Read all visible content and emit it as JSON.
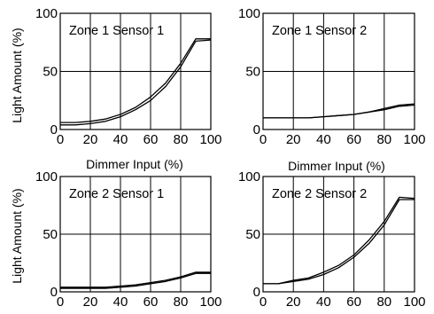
{
  "axis_titles": {
    "y_top": "Light Amount (%)",
    "y_bottom": "Light Amount (%)",
    "x_left": "Dimmer Input (%)",
    "x_right": "Dimmer Input (%)"
  },
  "chart_data": [
    {
      "type": "line",
      "title": "Zone 1 Sensor 1",
      "xlabel": "Dimmer Input (%)",
      "ylabel": "Light Amount (%)",
      "xlim": [
        0,
        100
      ],
      "ylim": [
        0,
        100
      ],
      "x_ticks": [
        "0",
        "20",
        "40",
        "60",
        "80",
        "100"
      ],
      "y_ticks": [
        "0",
        "50",
        "100"
      ],
      "grid": true,
      "x": [
        0,
        10,
        20,
        30,
        40,
        50,
        60,
        70,
        80,
        90,
        100
      ],
      "series": [
        {
          "values": [
            4,
            4,
            5,
            7,
            11,
            17,
            25,
            37,
            54,
            76,
            77
          ]
        },
        {
          "values": [
            6,
            6,
            7,
            9,
            13,
            19,
            28,
            40,
            57,
            78,
            78
          ]
        }
      ],
      "colors": [
        "#000000",
        "#000000"
      ]
    },
    {
      "type": "line",
      "title": "Zone 1 Sensor 2",
      "xlabel": "Dimmer Input (%)",
      "ylabel": "",
      "xlim": [
        0,
        100
      ],
      "ylim": [
        0,
        100
      ],
      "x_ticks": [
        "0",
        "20",
        "40",
        "60",
        "80",
        "100"
      ],
      "y_ticks": [
        "0",
        "50",
        "100"
      ],
      "grid": true,
      "x": [
        0,
        10,
        20,
        30,
        40,
        50,
        60,
        70,
        80,
        90,
        100
      ],
      "series": [
        {
          "values": [
            10,
            10,
            10,
            10,
            11,
            12,
            13,
            15,
            17,
            20,
            21
          ]
        },
        {
          "values": [
            10,
            10,
            10,
            10,
            11,
            12,
            13,
            15,
            18,
            21,
            22
          ]
        }
      ],
      "colors": [
        "#000000",
        "#000000"
      ]
    },
    {
      "type": "line",
      "title": "Zone 2 Sensor 1",
      "xlabel": "",
      "ylabel": "Light Amount (%)",
      "xlim": [
        0,
        100
      ],
      "ylim": [
        0,
        100
      ],
      "x_ticks": [
        "0",
        "20",
        "40",
        "60",
        "80",
        "100"
      ],
      "y_ticks": [
        "0",
        "50",
        "100"
      ],
      "grid": true,
      "x": [
        0,
        10,
        20,
        30,
        40,
        50,
        60,
        70,
        80,
        90,
        100
      ],
      "series": [
        {
          "values": [
            3,
            3,
            3,
            3,
            4,
            5,
            7,
            9,
            12,
            16,
            16
          ]
        },
        {
          "values": [
            4,
            4,
            4,
            4,
            5,
            6,
            8,
            10,
            13,
            17,
            17
          ]
        }
      ],
      "colors": [
        "#000000",
        "#000000"
      ]
    },
    {
      "type": "line",
      "title": "Zone 2 Sensor  2",
      "xlabel": "",
      "ylabel": "",
      "xlim": [
        0,
        100
      ],
      "ylim": [
        0,
        100
      ],
      "x_ticks": [
        "0",
        "20",
        "40",
        "60",
        "80",
        "100"
      ],
      "y_ticks": [
        "0",
        "50",
        "100"
      ],
      "grid": true,
      "x": [
        0,
        10,
        20,
        30,
        40,
        50,
        60,
        70,
        80,
        90,
        100
      ],
      "series": [
        {
          "values": [
            7,
            7,
            9,
            11,
            15,
            21,
            30,
            42,
            58,
            80,
            80
          ]
        },
        {
          "values": [
            7,
            7,
            10,
            12,
            17,
            23,
            32,
            45,
            61,
            82,
            81
          ]
        }
      ],
      "colors": [
        "#000000",
        "#000000"
      ]
    }
  ]
}
